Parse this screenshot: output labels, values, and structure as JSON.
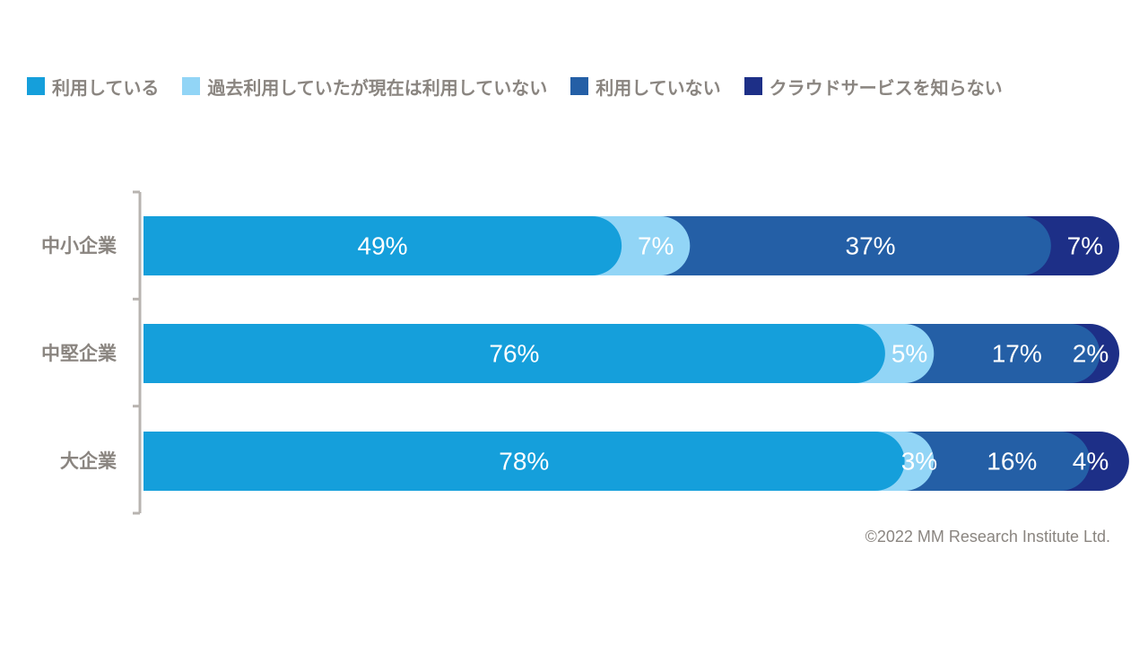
{
  "chart_data": {
    "type": "bar",
    "orientation": "horizontal",
    "stacked": true,
    "title": "",
    "xlabel": "",
    "ylabel": "",
    "xlim": [
      0,
      100
    ],
    "grid": false,
    "legend_position": "top",
    "categories": [
      "中小企業",
      "中堅企業",
      "大企業"
    ],
    "series": [
      {
        "name": "利用している",
        "color": "#159fdb",
        "values": [
          49,
          76,
          78
        ],
        "labels": [
          "49%",
          "76%",
          "78%"
        ]
      },
      {
        "name": "過去利用していたが現在は利用していない",
        "color": "#92d5f6",
        "values": [
          7,
          5,
          3
        ],
        "labels": [
          "7%",
          "5%",
          "3%"
        ]
      },
      {
        "name": "利用していない",
        "color": "#245fa6",
        "values": [
          37,
          17,
          16
        ],
        "labels": [
          "37%",
          "17%",
          "16%"
        ]
      },
      {
        "name": "クラウドサービスを知らない",
        "color": "#1d2f87",
        "values": [
          7,
          2,
          4
        ],
        "labels": [
          "7%",
          "2%",
          "4%"
        ]
      }
    ]
  },
  "copyright": "©2022 MM Research Institute Ltd."
}
